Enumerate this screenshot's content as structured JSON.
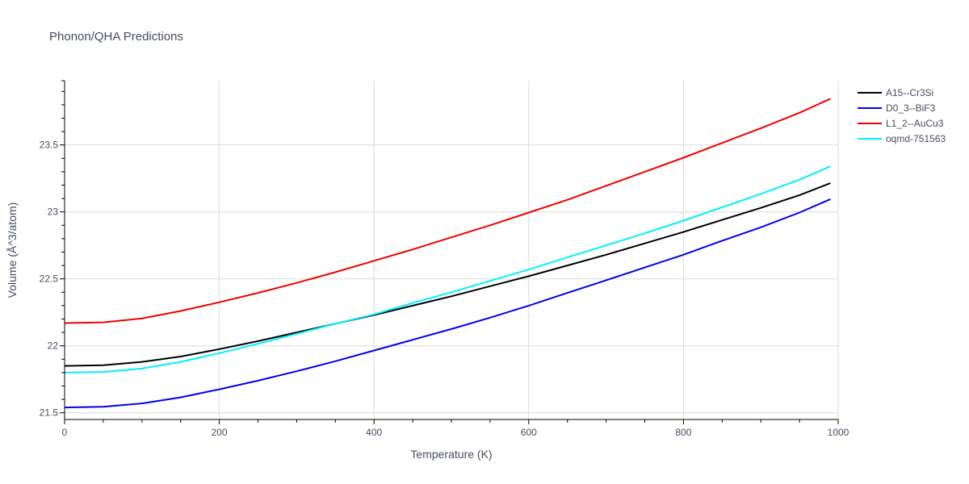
{
  "chart_data": {
    "type": "line",
    "title": "Phonon/QHA Predictions",
    "xlabel": "Temperature (K)",
    "ylabel": "Volume (Å^3/atom)",
    "xlim": [
      0,
      1000
    ],
    "ylim": [
      21.45,
      23.98
    ],
    "xticks": [
      0,
      200,
      400,
      600,
      800,
      1000
    ],
    "yticks": [
      21.5,
      22,
      22.5,
      23,
      23.5
    ],
    "xtick_labels": [
      "0",
      "200",
      "400",
      "600",
      "800",
      "1000"
    ],
    "ytick_labels": [
      "21.5",
      "22",
      "22.5",
      "23",
      "23.5"
    ],
    "grid": true,
    "legend_position": "top-right",
    "x": [
      0,
      50,
      100,
      150,
      200,
      250,
      300,
      350,
      400,
      450,
      500,
      550,
      600,
      650,
      700,
      750,
      800,
      850,
      900,
      950,
      990
    ],
    "series": [
      {
        "name": "A15--Cr3Si",
        "color": "#000000",
        "values": [
          21.85,
          21.855,
          21.88,
          21.92,
          21.975,
          22.035,
          22.1,
          22.165,
          22.23,
          22.3,
          22.37,
          22.445,
          22.52,
          22.6,
          22.68,
          22.765,
          22.85,
          22.94,
          23.03,
          23.125,
          23.215
        ]
      },
      {
        "name": "D0_3--BiF3",
        "color": "#0000ee",
        "values": [
          21.54,
          21.545,
          21.57,
          21.615,
          21.675,
          21.74,
          21.81,
          21.885,
          21.965,
          22.045,
          22.125,
          22.21,
          22.3,
          22.395,
          22.49,
          22.585,
          22.68,
          22.785,
          22.885,
          22.995,
          23.095
        ]
      },
      {
        "name": "L1_2--AuCu3",
        "color": "#ee0000",
        "values": [
          22.17,
          22.175,
          22.205,
          22.26,
          22.325,
          22.395,
          22.47,
          22.55,
          22.635,
          22.72,
          22.81,
          22.9,
          22.995,
          23.09,
          23.195,
          23.3,
          23.405,
          23.515,
          23.625,
          23.74,
          23.845
        ]
      },
      {
        "name": "oqmd-751563",
        "color": "#00f0ff",
        "values": [
          21.8,
          21.805,
          21.83,
          21.88,
          21.945,
          22.015,
          22.09,
          22.165,
          22.235,
          22.32,
          22.4,
          22.485,
          22.57,
          22.66,
          22.75,
          22.84,
          22.935,
          23.035,
          23.135,
          23.24,
          23.34
        ]
      }
    ]
  }
}
